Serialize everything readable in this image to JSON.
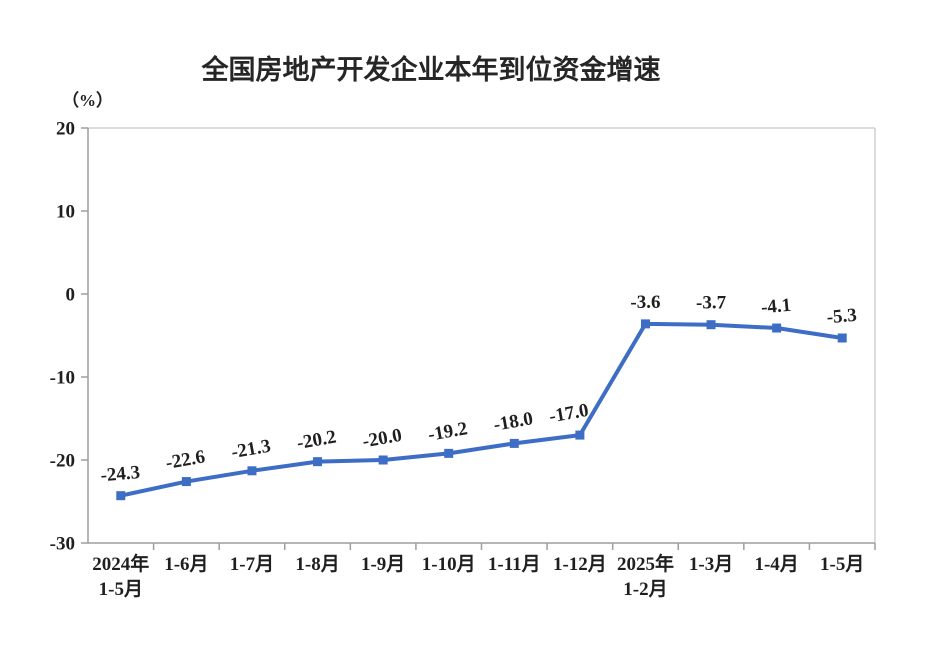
{
  "chart_data": {
    "type": "line",
    "title": "全国房地产开发企业本年到位资金增速",
    "unit_label": "（%）",
    "categories": [
      [
        "2024年",
        "1-5月"
      ],
      [
        "1-6月"
      ],
      [
        "1-7月"
      ],
      [
        "1-8月"
      ],
      [
        "1-9月"
      ],
      [
        "1-10月"
      ],
      [
        "1-11月"
      ],
      [
        "1-12月"
      ],
      [
        "2025年",
        "1-2月"
      ],
      [
        "1-3月"
      ],
      [
        "1-4月"
      ],
      [
        "1-5月"
      ]
    ],
    "values": [
      -24.3,
      -22.6,
      -21.3,
      -20.2,
      -20.0,
      -19.2,
      -18.0,
      -17.0,
      -3.6,
      -3.7,
      -4.1,
      -5.3
    ],
    "data_labels": [
      "-24.3",
      "-22.6",
      "-21.3",
      "-20.2",
      "-20.0",
      "-19.2",
      "-18.0",
      "-17.0",
      "-3.6",
      "-3.7",
      "-4.1",
      "-5.3"
    ],
    "y_ticks": [
      20,
      10,
      0,
      -10,
      -20,
      -30
    ],
    "y_tick_labels": [
      "20",
      "10",
      "0",
      "-10",
      "-20",
      "-30"
    ],
    "ylim": [
      -30,
      20
    ],
    "xlabel": "",
    "ylabel": "（%）",
    "grid": false,
    "legend": "none",
    "series_color": "#3D6DC4",
    "text_color": "#1f1f1f",
    "axis_color": "#9e9e9e",
    "border_color": "#c8c8c8"
  }
}
